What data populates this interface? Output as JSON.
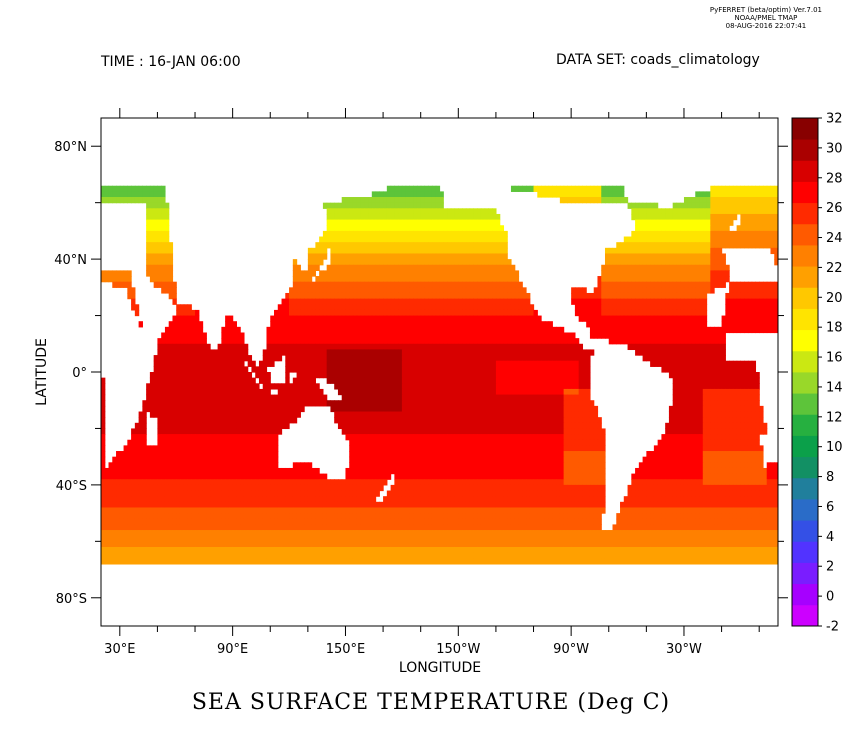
{
  "header": {
    "software": "PyFERRET (beta/optim) Ver.7.01",
    "org": "NOAA/PMEL TMAP",
    "timestamp": "08-AUG-2016 22:07:41",
    "time_label": "TIME : 16-JAN 06:00",
    "dataset_label": "DATA SET: coads_climatology"
  },
  "map": {
    "title": "SEA SURFACE TEMPERATURE (Deg C)",
    "xlabel": "LONGITUDE",
    "ylabel": "LATITUDE",
    "lon_range": [
      20,
      380
    ],
    "lat_range": [
      -90,
      90
    ],
    "lon_ticks": [
      "30°E",
      "90°E",
      "150°E",
      "150°W",
      "90°W",
      "30°W"
    ],
    "lat_ticks": [
      "80°N",
      "40°N",
      "0°",
      "40°S",
      "80°S"
    ]
  },
  "colorbar": {
    "range": [
      -2,
      32
    ],
    "labels": [
      "32",
      "30",
      "28",
      "26",
      "24",
      "22",
      "20",
      "18",
      "16",
      "14",
      "12",
      "10",
      "8",
      "6",
      "4",
      "2",
      "0",
      "-2"
    ],
    "colors": [
      "#cc00ff",
      "#a600ff",
      "#7a1dff",
      "#5233ff",
      "#3450e6",
      "#2a6cc8",
      "#207f9c",
      "#129064",
      "#0ba04a",
      "#26b040",
      "#5dc43a",
      "#99d829",
      "#cbe812",
      "#ffff00",
      "#ffe400",
      "#ffc800",
      "#ffa000",
      "#ff8000",
      "#ff5a00",
      "#ff2a00",
      "#ff0000",
      "#d80000",
      "#aa0000",
      "#880000"
    ]
  }
}
